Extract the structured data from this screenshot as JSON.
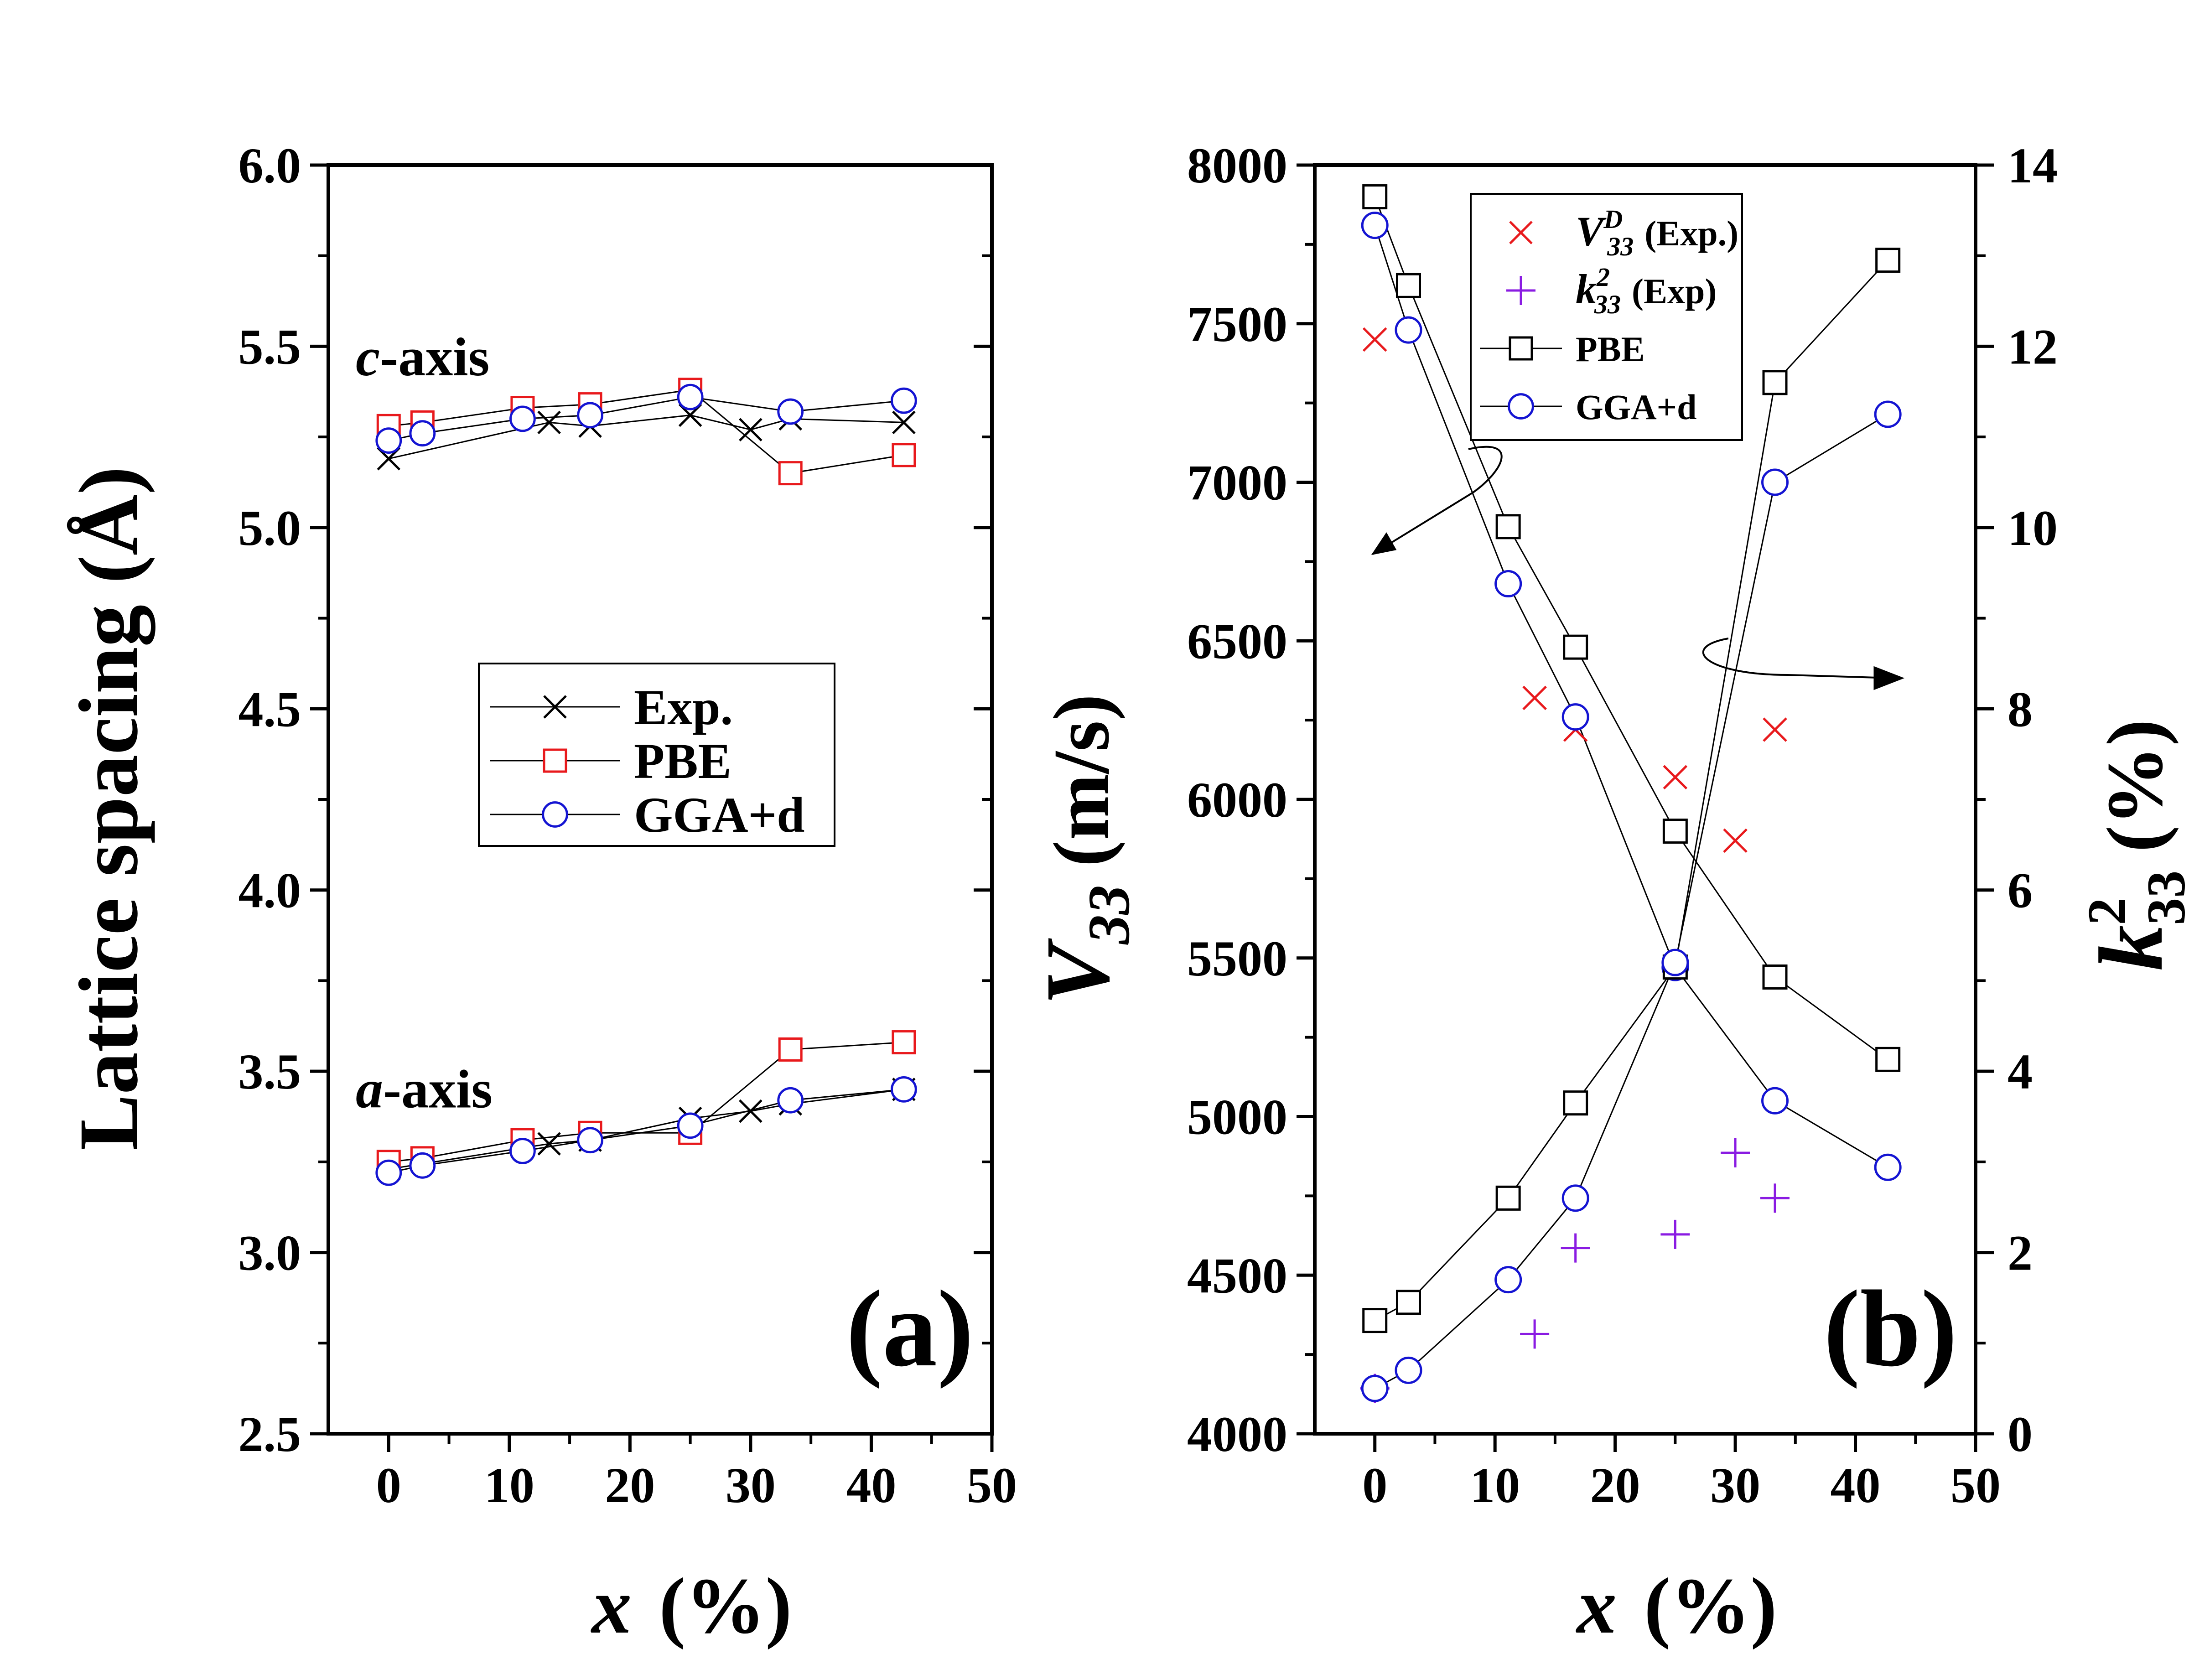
{
  "chart_data": [
    {
      "id": "a",
      "type": "line",
      "panel_label": "(a)",
      "ylabel": "Lattice spacing (Å)",
      "xlabel": {
        "var": "x",
        "unit": "(%)"
      },
      "xlim": [
        -5,
        50
      ],
      "ylim": [
        2.5,
        6.0
      ],
      "xticks": [
        "0",
        "10",
        "20",
        "30",
        "40",
        "50"
      ],
      "xtick_values": [
        0,
        10,
        20,
        30,
        40,
        50
      ],
      "yticks": [
        "2.5",
        "3.0",
        "3.5",
        "4.0",
        "4.5",
        "5.0",
        "5.5",
        "6.0"
      ],
      "ytick_values": [
        2.5,
        3.0,
        3.5,
        4.0,
        4.5,
        5.0,
        5.5,
        6.0
      ],
      "annotations": [
        {
          "italic": "c",
          "rest": "-axis",
          "x": 0,
          "y": 5.42
        },
        {
          "italic": "a",
          "rest": "-axis",
          "x": 0,
          "y": 3.4
        }
      ],
      "legend": [
        {
          "label": "Exp.",
          "marker": "x",
          "color": "#000000"
        },
        {
          "label": "PBE",
          "marker": "square",
          "color": "#e8191c"
        },
        {
          "label": "GGA+d",
          "marker": "circle",
          "color": "#1414d2"
        }
      ],
      "series": [
        {
          "name": "Exp. c-axis",
          "marker": "x",
          "color": "#000000",
          "x": [
            0,
            13.3,
            16.7,
            25,
            30,
            33.3,
            42.7
          ],
          "y": [
            5.19,
            5.29,
            5.28,
            5.31,
            5.27,
            5.3,
            5.29
          ]
        },
        {
          "name": "PBE c-axis",
          "marker": "square",
          "color": "#e8191c",
          "x": [
            0,
            2.8,
            11.1,
            16.7,
            25,
            33.3,
            42.7
          ],
          "y": [
            5.28,
            5.29,
            5.33,
            5.34,
            5.38,
            5.15,
            5.2
          ]
        },
        {
          "name": "GGA+d c-axis",
          "marker": "circle",
          "color": "#1414d2",
          "x": [
            0,
            2.8,
            11.1,
            16.7,
            25,
            33.3,
            42.7
          ],
          "y": [
            5.24,
            5.26,
            5.3,
            5.31,
            5.36,
            5.32,
            5.35
          ]
        },
        {
          "name": "Exp. a-axis",
          "marker": "x",
          "color": "#000000",
          "x": [
            0,
            13.3,
            16.7,
            25,
            30,
            33.3,
            42.7
          ],
          "y": [
            3.23,
            3.3,
            3.31,
            3.37,
            3.39,
            3.41,
            3.45
          ]
        },
        {
          "name": "PBE a-axis",
          "marker": "square",
          "color": "#e8191c",
          "x": [
            0,
            2.8,
            11.1,
            16.7,
            25,
            33.3,
            42.7
          ],
          "y": [
            3.25,
            3.26,
            3.31,
            3.33,
            3.33,
            3.56,
            3.58
          ]
        },
        {
          "name": "GGA+d a-axis",
          "marker": "circle",
          "color": "#1414d2",
          "x": [
            0,
            2.8,
            11.1,
            16.7,
            25,
            33.3,
            42.7
          ],
          "y": [
            3.22,
            3.24,
            3.28,
            3.31,
            3.35,
            3.42,
            3.45
          ]
        }
      ]
    },
    {
      "id": "b",
      "type": "line",
      "panel_label": "(b)",
      "ylabel": {
        "var": "V",
        "sub": "33",
        "unit": "(m/s)"
      },
      "y2label": {
        "var": "k",
        "sup": "2",
        "sub": "33",
        "unit": "(%)"
      },
      "xlabel": {
        "var": "x",
        "unit": "(%)"
      },
      "xlim": [
        -5,
        50
      ],
      "ylim": [
        4000,
        8000
      ],
      "y2lim": [
        0,
        14
      ],
      "xticks": [
        "0",
        "10",
        "20",
        "30",
        "40",
        "50"
      ],
      "xtick_values": [
        0,
        10,
        20,
        30,
        40,
        50
      ],
      "yticks": [
        "4000",
        "4500",
        "5000",
        "5500",
        "6000",
        "6500",
        "7000",
        "7500",
        "8000"
      ],
      "ytick_values": [
        4000,
        4500,
        5000,
        5500,
        6000,
        6500,
        7000,
        7500,
        8000
      ],
      "y2ticks": [
        "0",
        "2",
        "4",
        "6",
        "8",
        "10",
        "12",
        "14"
      ],
      "y2tick_values": [
        0,
        2,
        4,
        6,
        8,
        10,
        12,
        14
      ],
      "legend": [
        {
          "var": "V",
          "sup": "D",
          "sub": "33",
          "rest": "(Exp.)",
          "marker": "x",
          "color": "#e8191c"
        },
        {
          "var": "k",
          "sup": "2",
          "sub": "33",
          "rest": "(Exp)",
          "marker": "plus",
          "color": "#8a1be2"
        },
        {
          "label": "PBE",
          "marker": "square",
          "color": "#000000"
        },
        {
          "label": "GGA+d",
          "marker": "circle",
          "color": "#1414d2"
        }
      ],
      "series": [
        {
          "name": "V33D (Exp.)",
          "axis": "left",
          "marker": "x",
          "color": "#e8191c",
          "line": false,
          "x": [
            0,
            13.3,
            16.7,
            25,
            30,
            33.3
          ],
          "y": [
            7450,
            6320,
            6220,
            6070,
            5870,
            6220
          ]
        },
        {
          "name": "V33 PBE",
          "axis": "left",
          "marker": "square",
          "color": "#000000",
          "line": true,
          "x": [
            0,
            2.8,
            11.1,
            16.7,
            25,
            33.3,
            42.7
          ],
          "y": [
            7900,
            7620,
            6860,
            6480,
            5900,
            5440,
            5180
          ]
        },
        {
          "name": "V33 GGA+d",
          "axis": "left",
          "marker": "circle",
          "color": "#1414d2",
          "line": true,
          "x": [
            0,
            2.8,
            11.1,
            16.7,
            25,
            33.3,
            42.7
          ],
          "y": [
            7810,
            7480,
            6680,
            6260,
            5470,
            5050,
            4840
          ]
        },
        {
          "name": "k33^2 (Exp)",
          "axis": "right",
          "marker": "plus",
          "color": "#8a1be2",
          "line": false,
          "x": [
            0,
            13.3,
            16.7,
            25,
            30,
            33.3
          ],
          "y": [
            0.5,
            1.1,
            2.05,
            2.2,
            3.1,
            2.6
          ]
        },
        {
          "name": "k33^2 PBE",
          "axis": "right",
          "marker": "square",
          "color": "#000000",
          "line": true,
          "x": [
            0,
            2.8,
            11.1,
            16.7,
            25,
            33.3,
            42.7
          ],
          "y": [
            1.25,
            1.45,
            2.6,
            3.65,
            5.15,
            11.6,
            12.95
          ]
        },
        {
          "name": "k33^2 GGA+d",
          "axis": "right",
          "marker": "circle",
          "color": "#1414d2",
          "line": true,
          "x": [
            0,
            2.8,
            11.1,
            16.7,
            25,
            33.3,
            42.7
          ],
          "y": [
            0.5,
            0.7,
            1.7,
            2.6,
            5.2,
            10.5,
            11.25
          ]
        }
      ]
    }
  ]
}
